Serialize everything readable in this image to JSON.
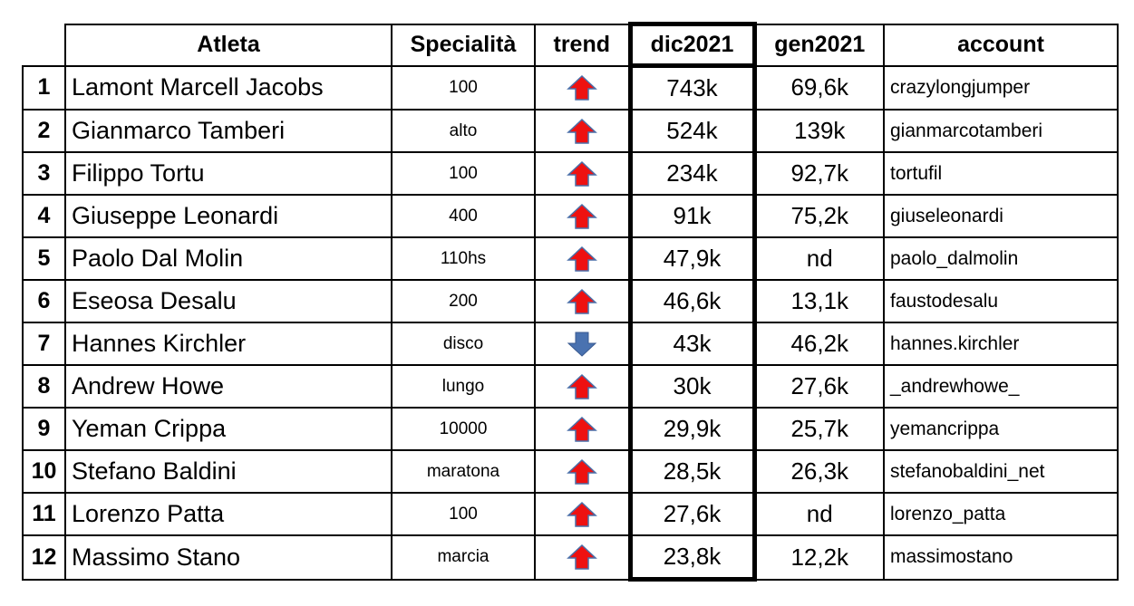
{
  "table": {
    "header": [
      "Atleta",
      "Specialità",
      "trend",
      "dic2021",
      "gen2021",
      "account"
    ],
    "rows": [
      {
        "rank": "1",
        "name": "Lamont Marcell Jacobs",
        "specialty": "100",
        "trend": "up",
        "dic2021": "743k",
        "gen2021": "69,6k",
        "account": "crazylongjumper"
      },
      {
        "rank": "2",
        "name": "Gianmarco Tamberi",
        "specialty": "alto",
        "trend": "up",
        "dic2021": "524k",
        "gen2021": "139k",
        "account": "gianmarcotamberi"
      },
      {
        "rank": "3",
        "name": "Filippo Tortu",
        "specialty": "100",
        "trend": "up",
        "dic2021": "234k",
        "gen2021": "92,7k",
        "account": "tortufil"
      },
      {
        "rank": "4",
        "name": "Giuseppe Leonardi",
        "specialty": "400",
        "trend": "up",
        "dic2021": "91k",
        "gen2021": "75,2k",
        "account": "giuseleonardi"
      },
      {
        "rank": "5",
        "name": "Paolo Dal Molin",
        "specialty": "110hs",
        "trend": "up",
        "dic2021": "47,9k",
        "gen2021": "nd",
        "account": "paolo_dalmolin"
      },
      {
        "rank": "6",
        "name": "Eseosa Desalu",
        "specialty": "200",
        "trend": "up",
        "dic2021": "46,6k",
        "gen2021": "13,1k",
        "account": "faustodesalu"
      },
      {
        "rank": "7",
        "name": "Hannes Kirchler",
        "specialty": "disco",
        "trend": "down",
        "dic2021": "43k",
        "gen2021": "46,2k",
        "account": "hannes.kirchler"
      },
      {
        "rank": "8",
        "name": "Andrew Howe",
        "specialty": "lungo",
        "trend": "up",
        "dic2021": "30k",
        "gen2021": "27,6k",
        "account": "_andrewhowe_"
      },
      {
        "rank": "9",
        "name": "Yeman Crippa",
        "specialty": "10000",
        "trend": "up",
        "dic2021": "29,9k",
        "gen2021": "25,7k",
        "account": "yemancrippa"
      },
      {
        "rank": "10",
        "name": "Stefano Baldini",
        "specialty": "maratona",
        "trend": "up",
        "dic2021": "28,5k",
        "gen2021": "26,3k",
        "account": "stefanobaldini_net"
      },
      {
        "rank": "11",
        "name": "Lorenzo Patta",
        "specialty": "100",
        "trend": "up",
        "dic2021": "27,6k",
        "gen2021": "nd",
        "account": "lorenzo_patta"
      },
      {
        "rank": "12",
        "name": "Massimo Stano",
        "specialty": "marcia",
        "trend": "up",
        "dic2021": "23,8k",
        "gen2021": "12,2k",
        "account": "massimostano"
      }
    ]
  }
}
